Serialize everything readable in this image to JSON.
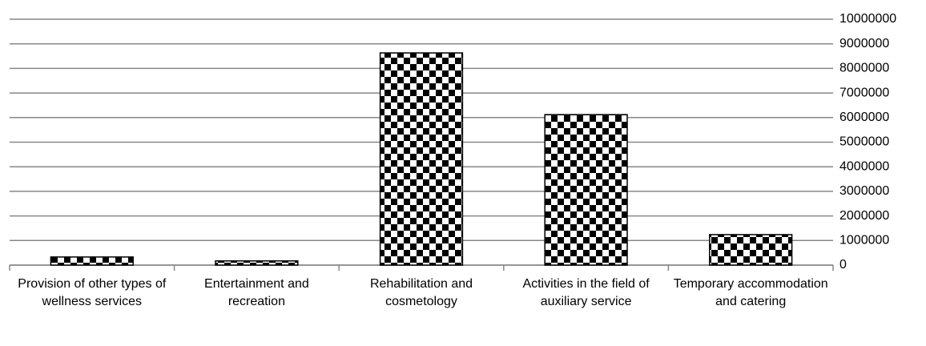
{
  "chart_data": {
    "type": "bar",
    "categories": [
      "Provision of other types of wellness services",
      "Entertainment and recreation",
      "Rehabilitation and cosmetology",
      "Activities in the field of auxiliary service",
      "Temporary accommodation and catering"
    ],
    "values": [
      330000,
      170000,
      8630000,
      6120000,
      1240000
    ],
    "color": "#000000",
    "pattern": "checkerboard",
    "ylim": [
      0,
      10000000
    ],
    "yticks": [
      0,
      1000000,
      2000000,
      3000000,
      4000000,
      5000000,
      6000000,
      7000000,
      8000000,
      9000000,
      10000000
    ],
    "grid": true,
    "yaxis_side": "right"
  }
}
